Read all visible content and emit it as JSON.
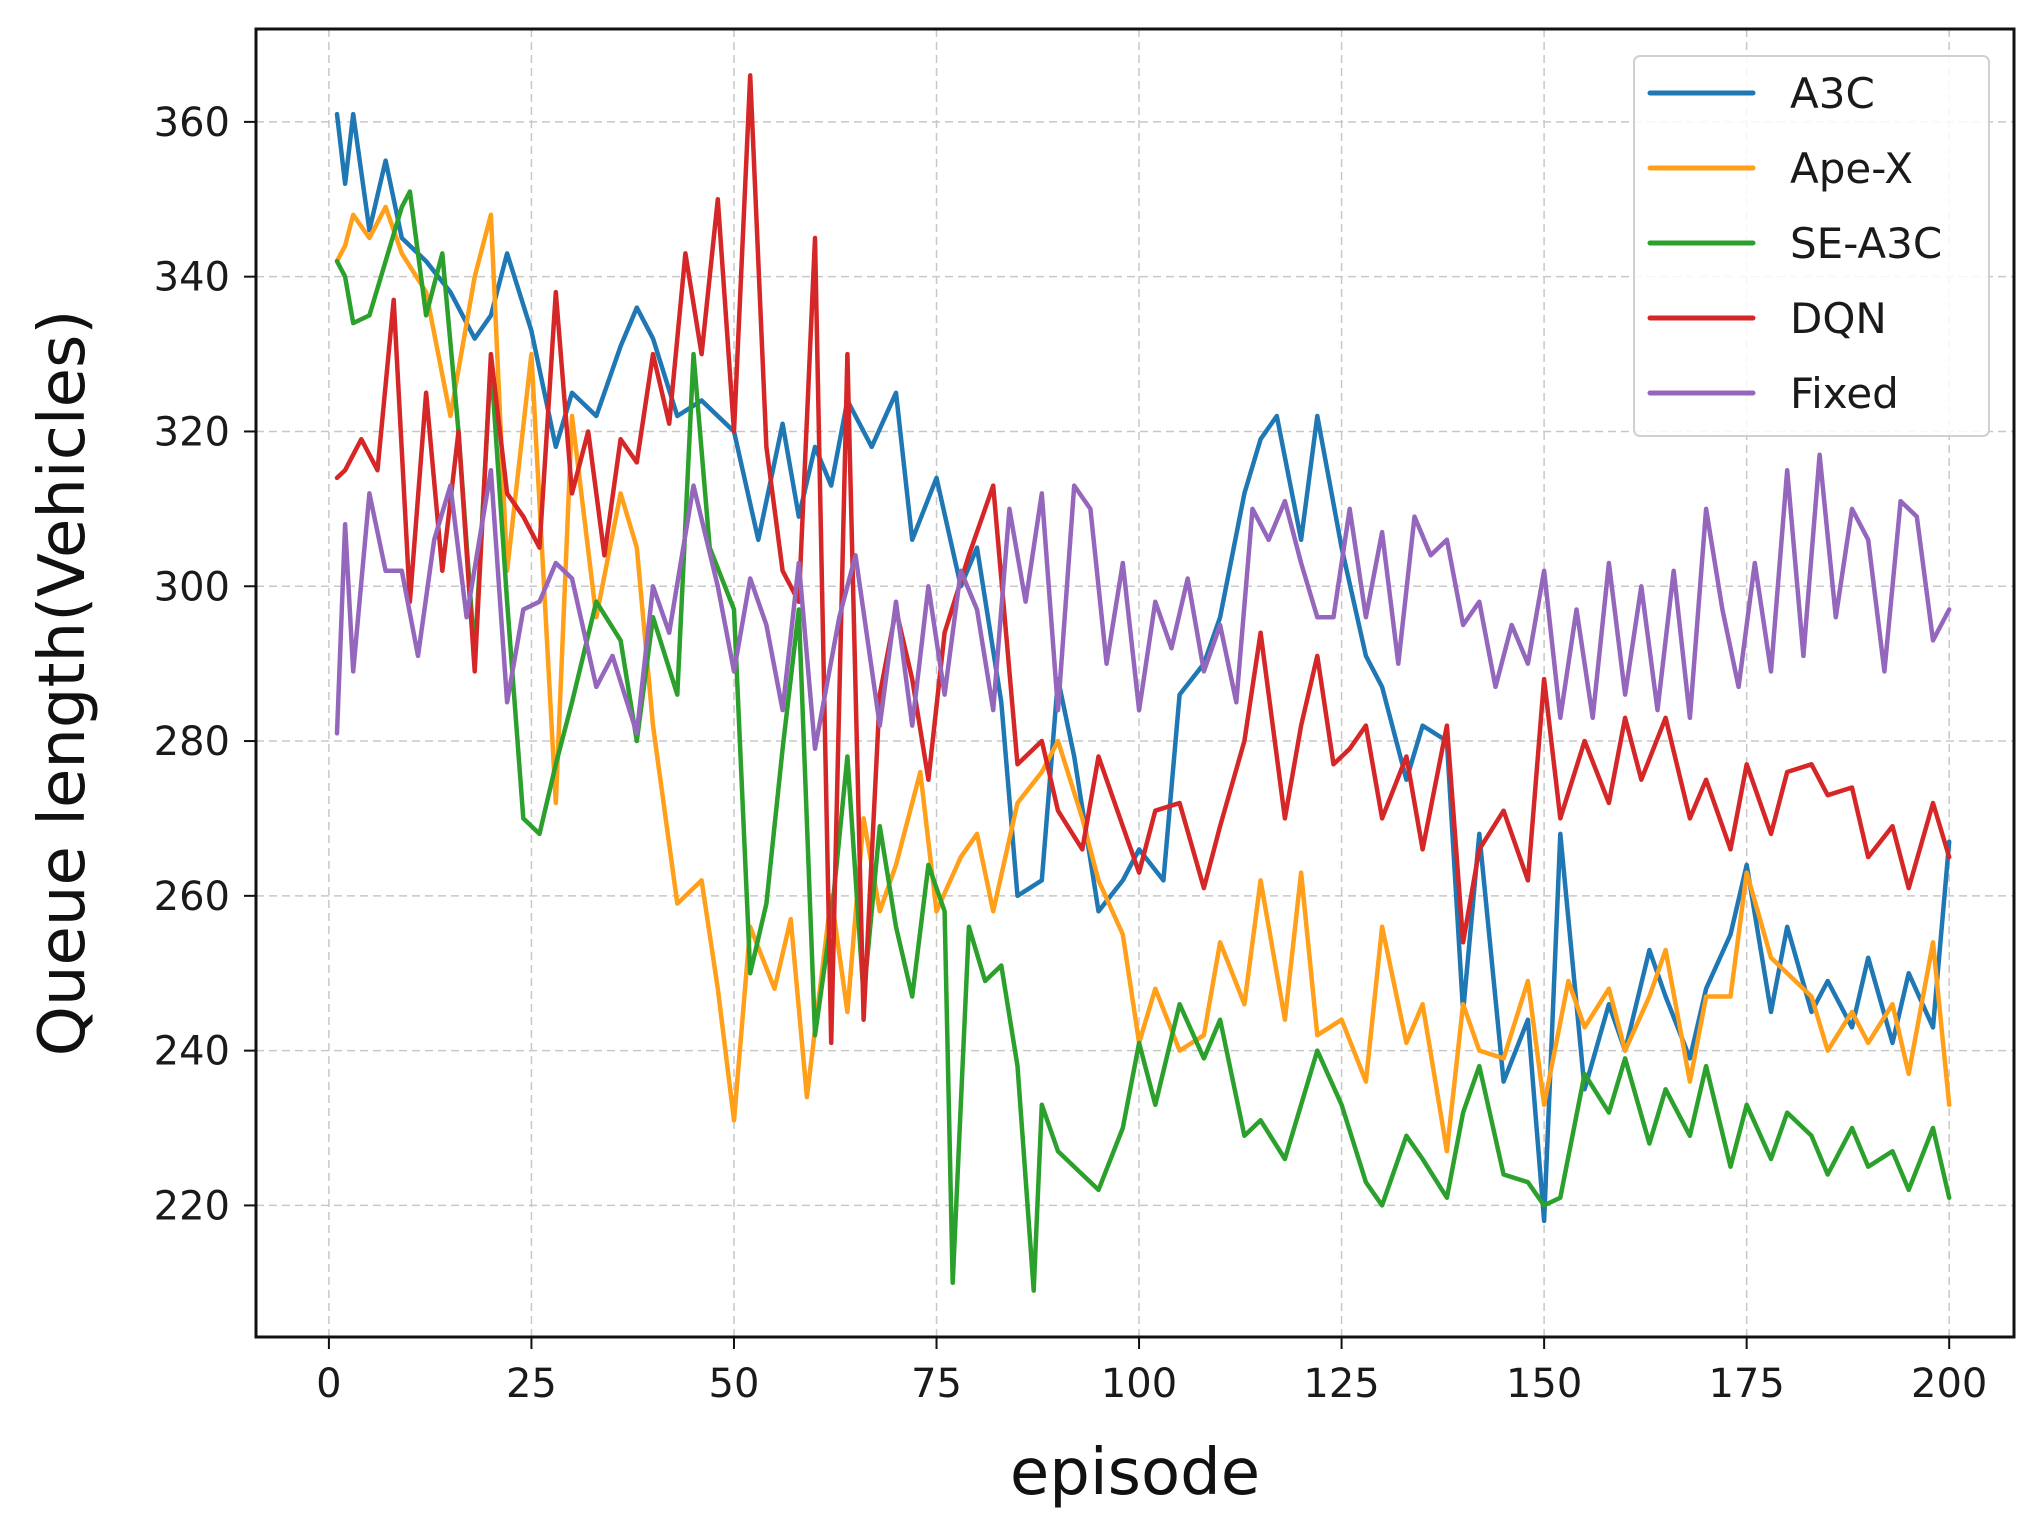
{
  "chart_data": {
    "type": "line",
    "xlabel": "episode",
    "ylabel": "Queue length(Vehicles)",
    "xlim": [
      -9,
      208
    ],
    "ylim": [
      203,
      372
    ],
    "xticks": [
      0,
      25,
      50,
      75,
      100,
      125,
      150,
      175,
      200
    ],
    "yticks": [
      220,
      240,
      260,
      280,
      300,
      320,
      340,
      360
    ],
    "grid": true,
    "legend_position": "top-right",
    "series": [
      {
        "name": "A3C",
        "color": "#1f77b4",
        "x": [
          1,
          2,
          3,
          5,
          7,
          9,
          12,
          15,
          18,
          20,
          22,
          25,
          28,
          30,
          33,
          36,
          38,
          40,
          43,
          46,
          50,
          53,
          56,
          58,
          60,
          62,
          64,
          67,
          70,
          72,
          75,
          78,
          80,
          83,
          85,
          88,
          90,
          92,
          95,
          98,
          100,
          103,
          105,
          108,
          110,
          113,
          115,
          117,
          120,
          122,
          125,
          128,
          130,
          133,
          135,
          138,
          140,
          142,
          145,
          148,
          150,
          152,
          155,
          158,
          160,
          163,
          165,
          168,
          170,
          173,
          175,
          178,
          180,
          183,
          185,
          188,
          190,
          193,
          195,
          198,
          200
        ],
        "values": [
          361,
          352,
          361,
          346,
          355,
          345,
          342,
          338,
          332,
          335,
          343,
          333,
          318,
          325,
          322,
          331,
          336,
          332,
          322,
          324,
          320,
          306,
          321,
          309,
          318,
          313,
          324,
          318,
          325,
          306,
          314,
          300,
          305,
          285,
          260,
          262,
          288,
          278,
          258,
          262,
          266,
          262,
          286,
          290,
          296,
          312,
          319,
          322,
          306,
          322,
          305,
          291,
          287,
          275,
          282,
          280,
          245,
          268,
          236,
          244,
          218,
          268,
          235,
          246,
          240,
          253,
          247,
          239,
          248,
          255,
          264,
          245,
          256,
          245,
          249,
          243,
          252,
          241,
          250,
          243,
          267
        ]
      },
      {
        "name": "Ape-X",
        "color": "#ff9f1a",
        "x": [
          1,
          2,
          3,
          5,
          7,
          9,
          12,
          15,
          18,
          20,
          22,
          25,
          28,
          30,
          33,
          36,
          38,
          40,
          43,
          46,
          48,
          50,
          52,
          55,
          57,
          59,
          62,
          64,
          66,
          68,
          70,
          73,
          75,
          78,
          80,
          82,
          85,
          88,
          90,
          93,
          95,
          98,
          100,
          102,
          105,
          108,
          110,
          113,
          115,
          118,
          120,
          122,
          125,
          128,
          130,
          133,
          135,
          138,
          140,
          142,
          145,
          148,
          150,
          153,
          155,
          158,
          160,
          163,
          165,
          168,
          170,
          173,
          175,
          178,
          180,
          183,
          185,
          188,
          190,
          193,
          195,
          198,
          200
        ],
        "values": [
          342,
          344,
          348,
          345,
          349,
          343,
          338,
          322,
          340,
          348,
          302,
          330,
          272,
          322,
          296,
          312,
          305,
          282,
          259,
          262,
          248,
          231,
          256,
          248,
          257,
          234,
          260,
          245,
          270,
          258,
          264,
          276,
          258,
          265,
          268,
          258,
          272,
          276,
          280,
          270,
          262,
          255,
          241,
          248,
          240,
          242,
          254,
          246,
          262,
          244,
          263,
          242,
          244,
          236,
          256,
          241,
          246,
          227,
          246,
          240,
          239,
          249,
          233,
          249,
          243,
          248,
          240,
          247,
          253,
          236,
          247,
          247,
          263,
          252,
          250,
          247,
          240,
          245,
          241,
          246,
          237,
          254,
          233
        ]
      },
      {
        "name": "SE-A3C",
        "color": "#2ca02c",
        "x": [
          1,
          2,
          3,
          5,
          7,
          9,
          10,
          12,
          14,
          16,
          18,
          20,
          22,
          24,
          26,
          28,
          30,
          33,
          36,
          38,
          40,
          43,
          45,
          47,
          50,
          52,
          54,
          56,
          58,
          60,
          62,
          64,
          66,
          68,
          70,
          72,
          74,
          76,
          77,
          79,
          81,
          83,
          85,
          87,
          88,
          90,
          92,
          95,
          98,
          100,
          102,
          105,
          108,
          110,
          113,
          115,
          118,
          120,
          122,
          125,
          128,
          130,
          133,
          135,
          138,
          140,
          142,
          145,
          148,
          150,
          152,
          155,
          158,
          160,
          163,
          165,
          168,
          170,
          173,
          175,
          178,
          180,
          183,
          185,
          188,
          190,
          193,
          195,
          198,
          200
        ],
        "values": [
          342,
          340,
          334,
          335,
          342,
          349,
          351,
          335,
          343,
          320,
          291,
          329,
          298,
          270,
          268,
          277,
          285,
          298,
          293,
          280,
          296,
          286,
          330,
          305,
          297,
          250,
          259,
          279,
          297,
          242,
          257,
          278,
          247,
          269,
          256,
          247,
          264,
          258,
          210,
          256,
          249,
          251,
          238,
          209,
          233,
          227,
          225,
          222,
          230,
          241,
          233,
          246,
          239,
          244,
          229,
          231,
          226,
          233,
          240,
          233,
          223,
          220,
          229,
          226,
          221,
          232,
          238,
          224,
          223,
          220,
          221,
          237,
          232,
          239,
          228,
          235,
          229,
          238,
          225,
          233,
          226,
          232,
          229,
          224,
          230,
          225,
          227,
          222,
          230,
          221
        ]
      },
      {
        "name": "DQN",
        "color": "#d62728",
        "x": [
          1,
          2,
          4,
          6,
          8,
          10,
          12,
          14,
          16,
          18,
          20,
          22,
          24,
          26,
          28,
          30,
          32,
          34,
          36,
          38,
          40,
          42,
          44,
          46,
          48,
          50,
          52,
          54,
          56,
          58,
          60,
          62,
          64,
          66,
          68,
          70,
          72,
          74,
          76,
          79,
          82,
          85,
          88,
          90,
          93,
          95,
          98,
          100,
          102,
          105,
          108,
          110,
          113,
          115,
          118,
          120,
          122,
          124,
          126,
          128,
          130,
          133,
          135,
          138,
          140,
          142,
          145,
          148,
          150,
          152,
          155,
          158,
          160,
          162,
          165,
          168,
          170,
          173,
          175,
          178,
          180,
          183,
          185,
          188,
          190,
          193,
          195,
          198,
          200
        ],
        "values": [
          314,
          315,
          319,
          315,
          337,
          298,
          325,
          302,
          320,
          289,
          330,
          312,
          309,
          305,
          338,
          312,
          320,
          304,
          319,
          316,
          330,
          321,
          343,
          330,
          350,
          320,
          366,
          318,
          302,
          298,
          345,
          241,
          330,
          244,
          286,
          297,
          288,
          275,
          294,
          304,
          313,
          277,
          280,
          271,
          266,
          278,
          269,
          263,
          271,
          272,
          261,
          269,
          280,
          294,
          270,
          282,
          291,
          277,
          279,
          282,
          270,
          278,
          266,
          282,
          254,
          266,
          271,
          262,
          288,
          270,
          280,
          272,
          283,
          275,
          283,
          270,
          275,
          266,
          277,
          268,
          276,
          277,
          273,
          274,
          265,
          269,
          261,
          272,
          265
        ]
      },
      {
        "name": "Fixed",
        "color": "#9467bd",
        "x": [
          1,
          2,
          3,
          5,
          7,
          9,
          11,
          13,
          15,
          17,
          20,
          22,
          24,
          26,
          28,
          30,
          33,
          35,
          38,
          40,
          42,
          45,
          48,
          50,
          52,
          54,
          56,
          58,
          60,
          63,
          65,
          68,
          70,
          72,
          74,
          76,
          78,
          80,
          82,
          84,
          86,
          88,
          90,
          92,
          94,
          96,
          98,
          100,
          102,
          104,
          106,
          108,
          110,
          112,
          114,
          116,
          118,
          120,
          122,
          124,
          126,
          128,
          130,
          132,
          134,
          136,
          138,
          140,
          142,
          144,
          146,
          148,
          150,
          152,
          154,
          156,
          158,
          160,
          162,
          164,
          166,
          168,
          170,
          172,
          174,
          176,
          178,
          180,
          182,
          184,
          186,
          188,
          190,
          192,
          194,
          196,
          198,
          200
        ],
        "values": [
          281,
          308,
          289,
          312,
          302,
          302,
          291,
          306,
          313,
          296,
          315,
          285,
          297,
          298,
          303,
          301,
          287,
          291,
          281,
          300,
          294,
          313,
          300,
          289,
          301,
          295,
          284,
          303,
          279,
          296,
          304,
          282,
          298,
          282,
          300,
          286,
          302,
          297,
          284,
          310,
          298,
          312,
          284,
          313,
          310,
          290,
          303,
          284,
          298,
          292,
          301,
          289,
          295,
          285,
          310,
          306,
          311,
          303,
          296,
          296,
          310,
          296,
          307,
          290,
          309,
          304,
          306,
          295,
          298,
          287,
          295,
          290,
          302,
          283,
          297,
          283,
          303,
          286,
          300,
          284,
          302,
          283,
          310,
          297,
          287,
          303,
          289,
          315,
          291,
          317,
          296,
          310,
          306,
          289,
          311,
          309,
          293,
          297
        ]
      }
    ]
  }
}
